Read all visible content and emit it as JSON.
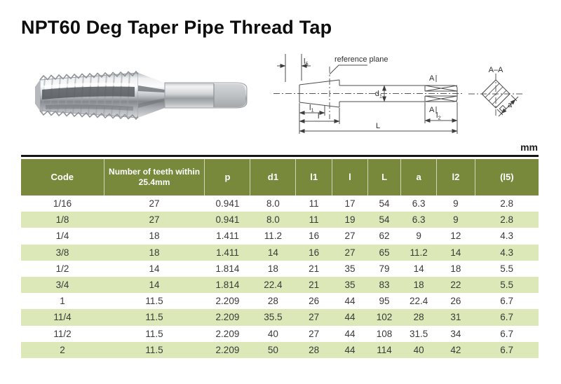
{
  "title": "NPT60 Deg Taper Pipe Thread Tap",
  "unit_label": "mm",
  "diagram": {
    "reference_plane_label": "reference plane",
    "section_title": "A–A",
    "section_mark": "A",
    "dim_d1": {
      "base": "d",
      "sub": "1"
    },
    "dim_l5": {
      "base": "l",
      "sub": "5"
    },
    "dim_l1": {
      "base": "l",
      "sub": "1"
    },
    "dim_l2": {
      "base": "l",
      "sub": "2"
    },
    "dim_l": "l",
    "dim_L": "L",
    "dim_a": "a"
  },
  "table": {
    "headers": [
      "Code",
      "Number of teeth within 25.4mm",
      "p",
      "d1",
      "l1",
      "l",
      "L",
      "a",
      "l2",
      "(l5)"
    ],
    "rows": [
      [
        "1/16",
        "27",
        "0.941",
        "8.0",
        "11",
        "17",
        "54",
        "6.3",
        "9",
        "2.8"
      ],
      [
        "1/8",
        "27",
        "0.941",
        "8.0",
        "11",
        "19",
        "54",
        "6.3",
        "9",
        "2.8"
      ],
      [
        "1/4",
        "18",
        "1.411",
        "11.2",
        "16",
        "27",
        "62",
        "9",
        "12",
        "4.3"
      ],
      [
        "3/8",
        "18",
        "1.411",
        "14",
        "16",
        "27",
        "65",
        "11.2",
        "14",
        "4.3"
      ],
      [
        "1/2",
        "14",
        "1.814",
        "18",
        "21",
        "35",
        "79",
        "14",
        "18",
        "5.5"
      ],
      [
        "3/4",
        "14",
        "1.814",
        "22.4",
        "21",
        "35",
        "83",
        "18",
        "22",
        "5.5"
      ],
      [
        "1",
        "11.5",
        "2.209",
        "28",
        "26",
        "44",
        "95",
        "22.4",
        "26",
        "6.7"
      ],
      [
        "11/4",
        "11.5",
        "2.209",
        "35.5",
        "27",
        "44",
        "102",
        "28",
        "31",
        "6.7"
      ],
      [
        "11/2",
        "11.5",
        "2.209",
        "40",
        "27",
        "44",
        "108",
        "31.5",
        "34",
        "6.7"
      ],
      [
        "2",
        "11.5",
        "2.209",
        "50",
        "28",
        "44",
        "114",
        "40",
        "42",
        "6.7"
      ]
    ]
  },
  "colors": {
    "header_green": "#78893c",
    "row_green": "#dce8b8",
    "top_rule": "#161616"
  }
}
